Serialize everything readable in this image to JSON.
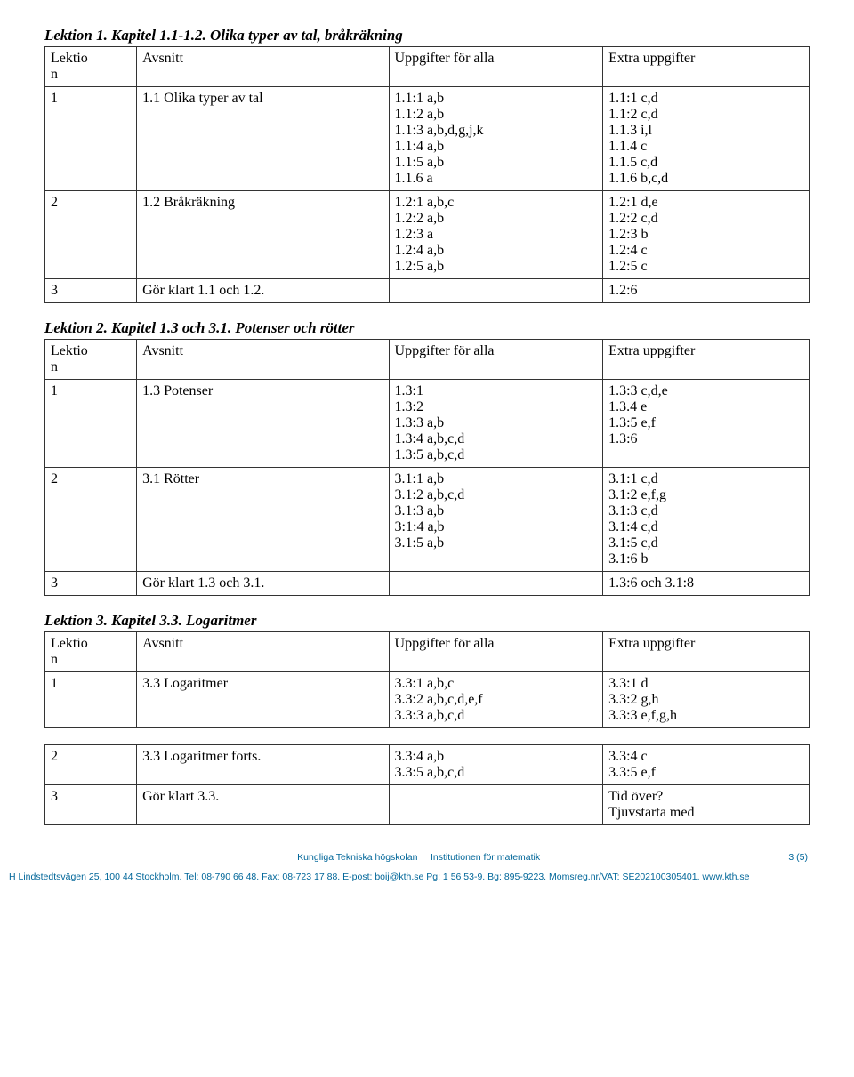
{
  "sections": [
    {
      "title": "Lektion 1. Kapitel 1.1-1.2. Olika typer av tal, bråkräkning",
      "headers": [
        "Lektio\nn",
        "Avsnitt",
        "Uppgifter för alla",
        "Extra uppgifter"
      ],
      "rows": [
        [
          "1",
          "1.1 Olika typer av tal",
          "1.1:1 a,b\n1.1:2 a,b\n1.1:3 a,b,d,g,j,k\n1.1:4  a,b\n1.1:5 a,b\n1.1.6 a",
          "1.1:1 c,d\n1.1:2 c,d\n1.1.3 i,l\n1.1.4 c\n1.1.5 c,d\n1.1.6 b,c,d"
        ],
        [
          "2",
          "1.2 Bråkräkning",
          "1.2:1 a,b,c\n1.2:2 a,b\n1.2:3 a\n1.2:4 a,b\n1.2:5 a,b",
          "1.2:1 d,e\n1.2:2 c,d\n1.2:3 b\n1.2:4 c\n1.2:5 c"
        ],
        [
          "3",
          "Gör klart 1.1 och 1.2.",
          "",
          "1.2:6"
        ]
      ]
    },
    {
      "title": "Lektion 2. Kapitel 1.3 och 3.1. Potenser och rötter",
      "headers": [
        "Lektio\nn",
        "Avsnitt",
        "Uppgifter för alla",
        "Extra uppgifter"
      ],
      "rows": [
        [
          "1",
          "1.3 Potenser",
          "1.3:1\n1.3:2\n1.3:3 a,b\n1.3:4 a,b,c,d\n1.3:5 a,b,c,d",
          "1.3:3 c,d,e\n1.3.4 e\n1.3:5 e,f\n1.3:6"
        ],
        [
          "2",
          "3.1 Rötter",
          "3.1:1 a,b\n3.1:2 a,b,c,d\n3.1:3 a,b\n3:1:4 a,b\n3.1:5 a,b",
          "3.1:1 c,d\n3.1:2 e,f,g\n3.1:3 c,d\n3.1:4 c,d\n3.1:5 c,d\n3.1:6 b"
        ],
        [
          "3",
          "Gör klart 1.3 och 3.1.",
          "",
          "1.3:6 och 3.1:8"
        ]
      ]
    },
    {
      "title": "Lektion 3. Kapitel 3.3. Logaritmer",
      "headers": [
        "Lektio\nn",
        "Avsnitt",
        "Uppgifter för alla",
        "Extra uppgifter"
      ],
      "rows": [
        [
          "1",
          "3.3 Logaritmer",
          "3.3:1 a,b,c\n3.3:2 a,b,c,d,e,f\n3.3:3 a,b,c,d",
          "3.3:1 d\n3.3:2 g,h\n3.3:3 e,f,g,h"
        ]
      ],
      "rows2": [
        [
          "2",
          "3.3 Logaritmer forts.",
          "3.3:4 a,b\n3.3:5 a,b,c,d",
          "3.3:4 c\n3.3:5 e,f"
        ],
        [
          "3",
          "Gör klart 3.3.",
          "",
          "Tid över?\nTjuvstarta med"
        ]
      ]
    }
  ],
  "footer": {
    "center_left": "Kungliga Tekniska högskolan",
    "center_right": "Institutionen för matematik",
    "page": "3 (5)",
    "line2": "H Lindstedtsvägen 25, 100 44 Stockholm. Tel: 08-790 66 48. Fax: 08-723 17 88. E-post: boij@kth.se  Pg: 1 56 53-9. Bg: 895-9223. Momsreg.nr/VAT: SE202100305401.  www.kth.se"
  }
}
